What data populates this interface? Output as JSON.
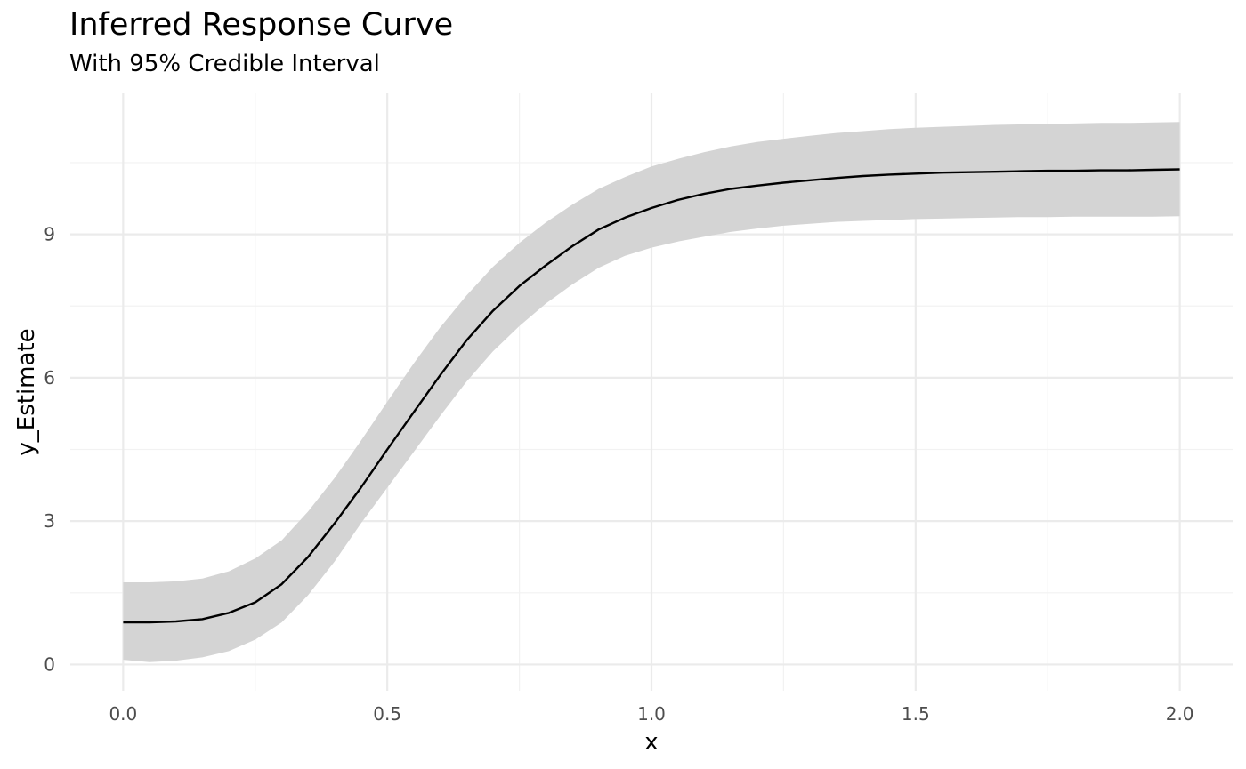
{
  "chart_data": {
    "type": "line",
    "title": "Inferred Response Curve",
    "subtitle": "With 95% Credible Interval",
    "xlabel": "x",
    "ylabel": "y_Estimate",
    "xlim": [
      -0.1,
      2.1
    ],
    "ylim": [
      -0.55,
      11.95
    ],
    "x_ticks": [
      0.0,
      0.5,
      1.0,
      1.5,
      2.0
    ],
    "x_tick_labels": [
      "0.0",
      "0.5",
      "1.0",
      "1.5",
      "2.0"
    ],
    "y_ticks": [
      0,
      3,
      6,
      9
    ],
    "y_tick_labels": [
      "0",
      "3",
      "6",
      "9"
    ],
    "grid": true,
    "legend": "none",
    "series": [
      {
        "kind": "line",
        "color": "#000000",
        "x": [
          0.0,
          0.05,
          0.1,
          0.15,
          0.2,
          0.25,
          0.3,
          0.35,
          0.4,
          0.45,
          0.5,
          0.55,
          0.6,
          0.65,
          0.7,
          0.75,
          0.8,
          0.85,
          0.9,
          0.95,
          1.0,
          1.05,
          1.1,
          1.15,
          1.2,
          1.25,
          1.3,
          1.35,
          1.4,
          1.45,
          1.5,
          1.55,
          1.6,
          1.65,
          1.7,
          1.75,
          1.8,
          1.85,
          1.9,
          1.95,
          2.0
        ],
        "y": [
          0.88,
          0.88,
          0.9,
          0.95,
          1.08,
          1.3,
          1.68,
          2.25,
          2.95,
          3.7,
          4.5,
          5.28,
          6.05,
          6.78,
          7.4,
          7.92,
          8.35,
          8.75,
          9.1,
          9.35,
          9.55,
          9.72,
          9.85,
          9.95,
          10.02,
          10.08,
          10.13,
          10.18,
          10.22,
          10.25,
          10.27,
          10.29,
          10.3,
          10.31,
          10.32,
          10.33,
          10.33,
          10.34,
          10.34,
          10.35,
          10.36
        ]
      },
      {
        "kind": "ribbon",
        "label": "95% Credible Interval",
        "color": "#d4d4d4",
        "x": [
          0.0,
          0.05,
          0.1,
          0.15,
          0.2,
          0.25,
          0.3,
          0.35,
          0.4,
          0.45,
          0.5,
          0.55,
          0.6,
          0.65,
          0.7,
          0.75,
          0.8,
          0.85,
          0.9,
          0.95,
          1.0,
          1.05,
          1.1,
          1.15,
          1.2,
          1.25,
          1.3,
          1.35,
          1.4,
          1.45,
          1.5,
          1.55,
          1.6,
          1.65,
          1.7,
          1.75,
          1.8,
          1.85,
          1.9,
          1.95,
          2.0
        ],
        "lower": [
          0.1,
          0.05,
          0.08,
          0.15,
          0.28,
          0.52,
          0.88,
          1.45,
          2.15,
          2.95,
          3.7,
          4.45,
          5.2,
          5.92,
          6.55,
          7.08,
          7.55,
          7.95,
          8.3,
          8.55,
          8.72,
          8.85,
          8.95,
          9.05,
          9.12,
          9.18,
          9.22,
          9.26,
          9.28,
          9.3,
          9.32,
          9.33,
          9.34,
          9.35,
          9.36,
          9.36,
          9.37,
          9.37,
          9.37,
          9.37,
          9.38
        ],
        "upper": [
          1.72,
          1.72,
          1.74,
          1.8,
          1.95,
          2.22,
          2.6,
          3.2,
          3.9,
          4.68,
          5.5,
          6.3,
          7.05,
          7.72,
          8.32,
          8.82,
          9.25,
          9.62,
          9.95,
          10.2,
          10.42,
          10.58,
          10.72,
          10.84,
          10.93,
          11.0,
          11.06,
          11.12,
          11.16,
          11.2,
          11.23,
          11.25,
          11.27,
          11.29,
          11.3,
          11.31,
          11.32,
          11.33,
          11.33,
          11.34,
          11.35
        ]
      }
    ]
  }
}
